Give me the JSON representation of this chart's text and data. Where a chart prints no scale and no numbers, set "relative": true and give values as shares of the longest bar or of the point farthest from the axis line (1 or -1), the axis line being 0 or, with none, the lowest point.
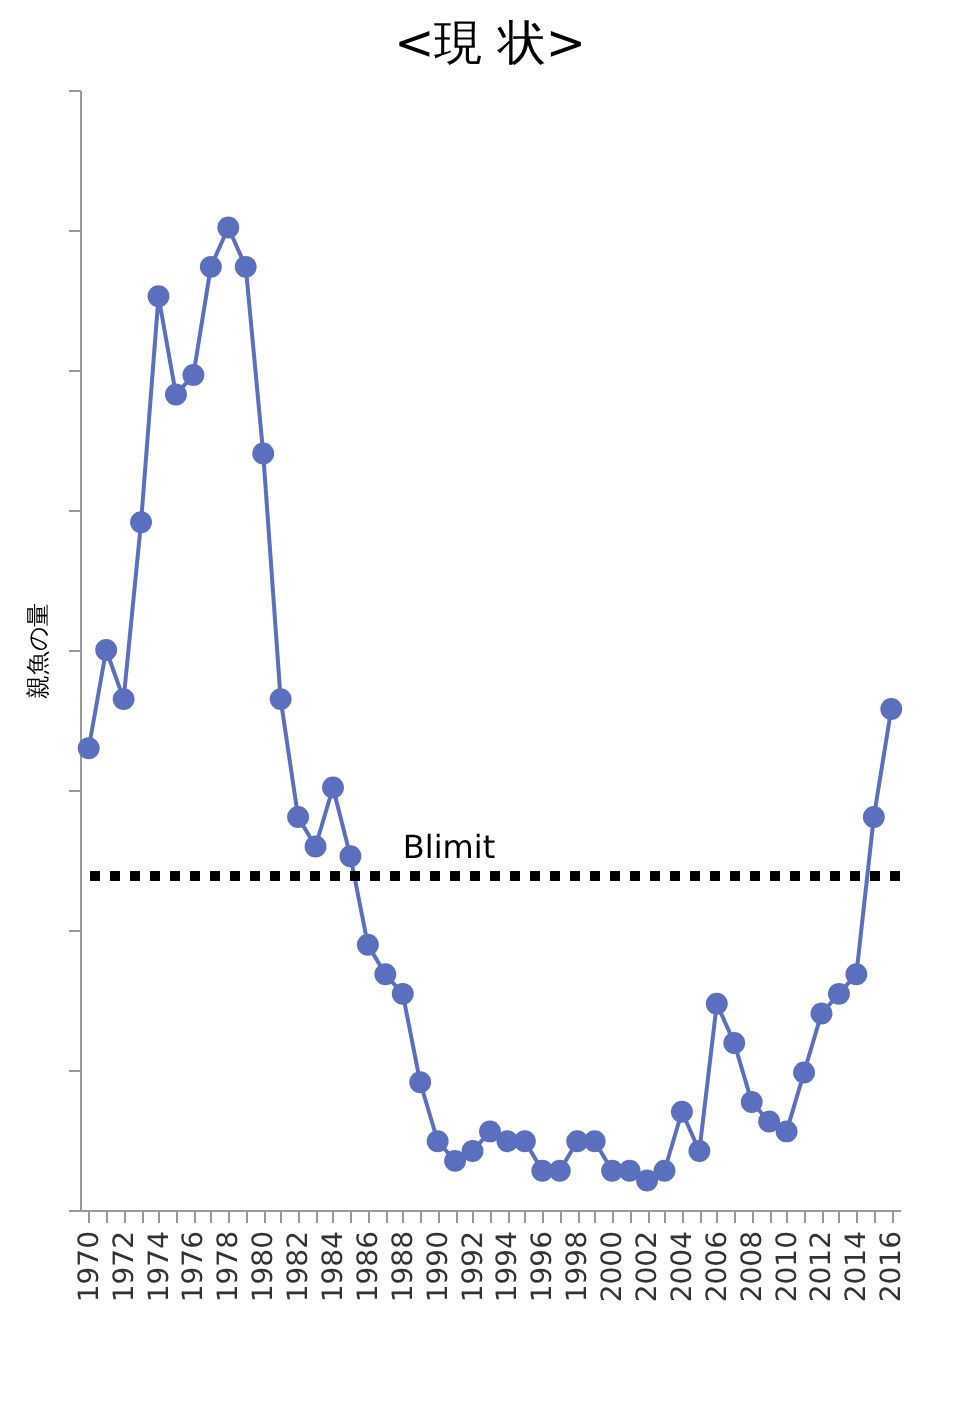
{
  "chart_data": {
    "type": "line",
    "title": "<現 状>",
    "ylabel": "親魚の量",
    "relative": true,
    "x": [
      1970,
      1971,
      1972,
      1973,
      1974,
      1975,
      1976,
      1977,
      1978,
      1979,
      1980,
      1981,
      1982,
      1983,
      1984,
      1985,
      1986,
      1987,
      1988,
      1989,
      1990,
      1991,
      1992,
      1993,
      1994,
      1995,
      1996,
      1997,
      1998,
      1999,
      2000,
      2001,
      2002,
      2003,
      2004,
      2005,
      2006,
      2007,
      2008,
      2009,
      2010,
      2011,
      2012,
      2013,
      2014,
      2015,
      2016
    ],
    "xlim": [
      1969.5,
      2016.5
    ],
    "xticks": [
      1970,
      {
        "value": 1971,
        "label": null
      },
      1972,
      {
        "value": 1973,
        "label": null
      },
      1974,
      {
        "value": 1975,
        "label": null
      },
      1976,
      {
        "value": 1977,
        "label": null
      },
      1978,
      {
        "value": 1979,
        "label": null
      },
      1980,
      {
        "value": 1981,
        "label": null
      },
      1982,
      {
        "value": 1983,
        "label": null
      },
      1984,
      {
        "value": 1985,
        "label": null
      },
      1986,
      {
        "value": 1987,
        "label": null
      },
      1988,
      {
        "value": 1989,
        "label": null
      },
      1990,
      {
        "value": 1991,
        "label": null
      },
      1992,
      {
        "value": 1993,
        "label": null
      },
      1994,
      {
        "value": 1995,
        "label": null
      },
      1996,
      {
        "value": 1997,
        "label": null
      },
      1998,
      {
        "value": 1999,
        "label": null
      },
      2000,
      {
        "value": 2001,
        "label": null
      },
      2002,
      {
        "value": 2003,
        "label": null
      },
      2004,
      {
        "value": 2005,
        "label": null
      },
      2006,
      {
        "value": 2007,
        "label": null
      },
      2008,
      {
        "value": 2009,
        "label": null
      },
      2010,
      {
        "value": 2011,
        "label": null
      },
      2012,
      {
        "value": 2013,
        "label": null
      },
      2014,
      {
        "value": 2015,
        "label": null
      },
      2016
    ],
    "series": [
      {
        "color": "#5a6fbd",
        "values": [
          0.47,
          0.57,
          0.52,
          0.7,
          0.93,
          0.83,
          0.85,
          0.96,
          1,
          0.96,
          0.77,
          0.52,
          0.4,
          0.37,
          0.43,
          0.36,
          0.27,
          0.24,
          0.22,
          0.13,
          0.07,
          0.05,
          0.06,
          0.08,
          0.07,
          0.07,
          0.04,
          0.04,
          0.07,
          0.07,
          0.04,
          0.04,
          0.03,
          0.04,
          0.1,
          0.06,
          0.21,
          0.17,
          0.11,
          0.09,
          0.08,
          0.14,
          0.2,
          0.22,
          0.24,
          0.4,
          0.51
        ]
      }
    ],
    "ref_lines": [
      {
        "axis": "y",
        "value": 0.34,
        "label": "Blimit",
        "color": "#000000",
        "line_style": "dotted"
      }
    ],
    "marker": "circle",
    "line_style": "solid",
    "grid": false,
    "legend": false,
    "tick_labels": "x"
  }
}
